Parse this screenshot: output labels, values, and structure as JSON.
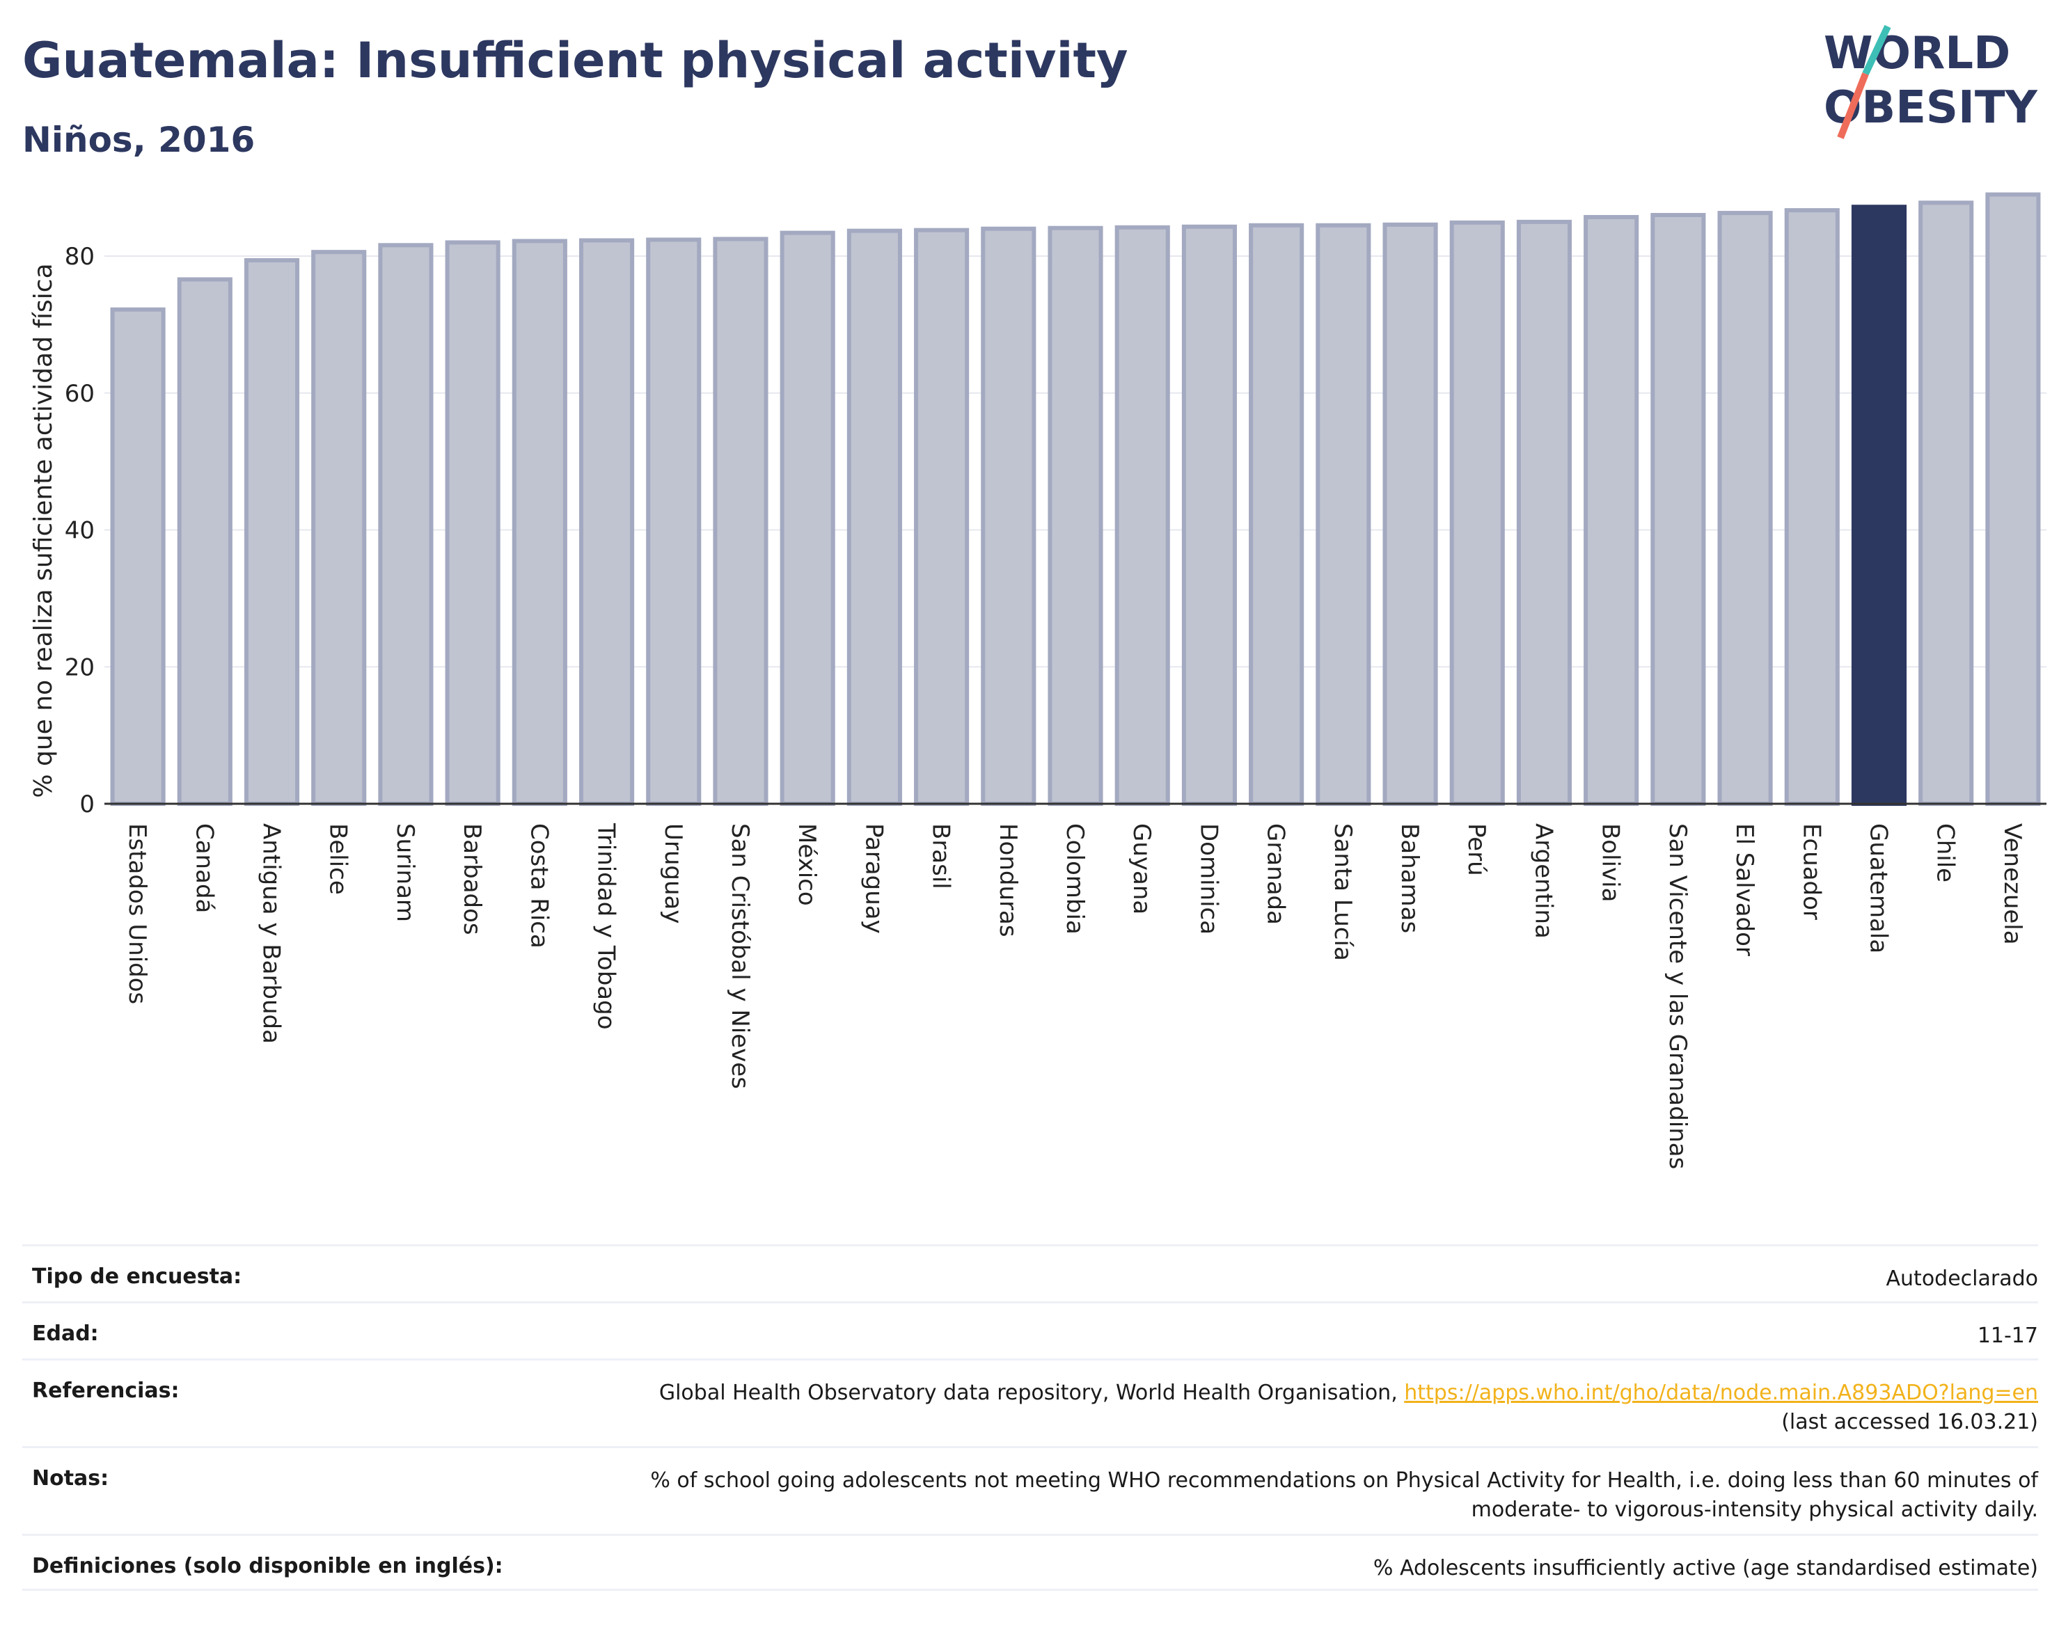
{
  "header": {
    "title": "Guatemala: Insufficient physical activity",
    "subtitle": "Niños, 2016",
    "logo_line1": "WORLD",
    "logo_line2": "OBESITY"
  },
  "colors": {
    "title": "#2d3860",
    "bar_default": "#c0c4d1",
    "bar_default_stroke": "#a3a9c0",
    "bar_highlight": "#2d3860",
    "link": "#f2b21b",
    "logo_teal": "#3dbfb6",
    "logo_coral": "#ef6c5a"
  },
  "chart_data": {
    "type": "bar",
    "ylabel": "% que no realiza suficiente actividad física",
    "ylim": [
      0,
      92
    ],
    "yticks": [
      0,
      20,
      40,
      60,
      80
    ],
    "grid": true,
    "highlight": "Guatemala",
    "categories": [
      "Estados Unidos",
      "Canadá",
      "Antigua y Barbuda",
      "Belice",
      "Surinam",
      "Barbados",
      "Costa Rica",
      "Trinidad y Tobago",
      "Uruguay",
      "San Cristóbal y Nieves",
      "México",
      "Paraguay",
      "Brasil",
      "Honduras",
      "Colombia",
      "Guyana",
      "Dominica",
      "Granada",
      "Santa Lucía",
      "Bahamas",
      "Perú",
      "Argentina",
      "Bolivia",
      "San Vicente y las Granadinas",
      "El Salvador",
      "Ecuador",
      "Guatemala",
      "Chile",
      "Venezuela"
    ],
    "values": [
      72.2,
      76.6,
      79.4,
      80.6,
      81.6,
      82.0,
      82.2,
      82.3,
      82.4,
      82.5,
      83.4,
      83.7,
      83.8,
      84.0,
      84.1,
      84.2,
      84.3,
      84.5,
      84.5,
      84.6,
      84.9,
      85.0,
      85.7,
      86.0,
      86.3,
      86.7,
      87.2,
      87.8,
      89.0
    ]
  },
  "meta": {
    "survey_label": "Tipo de encuesta:",
    "survey_value": "Autodeclarado",
    "age_label": "Edad:",
    "age_value": "11-17",
    "refs_label": "Referencias:",
    "refs_text": "Global Health Observatory data repository, World Health Organisation, ",
    "refs_link": "https://apps.who.int/gho/data/node.main.A893ADO?lang=en",
    "refs_accessed": "(last accessed 16.03.21)",
    "notes_label": "Notas:",
    "notes_line1": "% of school going adolescents not meeting WHO recommendations on Physical Activity for Health, i.e. doing less than 60 minutes of",
    "notes_line2": "moderate- to vigorous-intensity physical activity daily.",
    "defs_label": "Definiciones (solo disponible en inglés):",
    "defs_value": "% Adolescents insufficiently active (age standardised estimate)"
  }
}
